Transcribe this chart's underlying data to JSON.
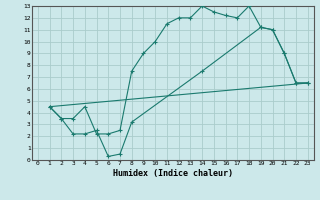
{
  "xlabel": "Humidex (Indice chaleur)",
  "bg_color": "#cce8ea",
  "grid_color": "#aacccc",
  "line_color": "#1a7a6e",
  "xlim": [
    -0.5,
    23.5
  ],
  "ylim": [
    0,
    13
  ],
  "xticks": [
    0,
    1,
    2,
    3,
    4,
    5,
    6,
    7,
    8,
    9,
    10,
    11,
    12,
    13,
    14,
    15,
    16,
    17,
    18,
    19,
    20,
    21,
    22,
    23
  ],
  "yticks": [
    0,
    1,
    2,
    3,
    4,
    5,
    6,
    7,
    8,
    9,
    10,
    11,
    12,
    13
  ],
  "line1_x": [
    1,
    2,
    3,
    4,
    5,
    6,
    7,
    8,
    9,
    10,
    11,
    12,
    13,
    14,
    15,
    16,
    17,
    18,
    19,
    20,
    21,
    22,
    23
  ],
  "line1_y": [
    4.5,
    3.5,
    3.5,
    4.5,
    2.2,
    2.2,
    2.5,
    7.5,
    9.0,
    10.0,
    11.5,
    12.0,
    12.0,
    13.0,
    12.5,
    12.2,
    12.0,
    13.0,
    11.2,
    11.0,
    9.0,
    6.5,
    6.5
  ],
  "line2_x": [
    1,
    2,
    3,
    4,
    5,
    6,
    7,
    8,
    14,
    19,
    20,
    21,
    22,
    23
  ],
  "line2_y": [
    4.5,
    3.5,
    2.2,
    2.2,
    2.5,
    0.3,
    0.5,
    3.2,
    7.5,
    11.2,
    11.0,
    9.0,
    6.5,
    6.5
  ],
  "line3_x": [
    1,
    23
  ],
  "line3_y": [
    4.5,
    6.5
  ]
}
